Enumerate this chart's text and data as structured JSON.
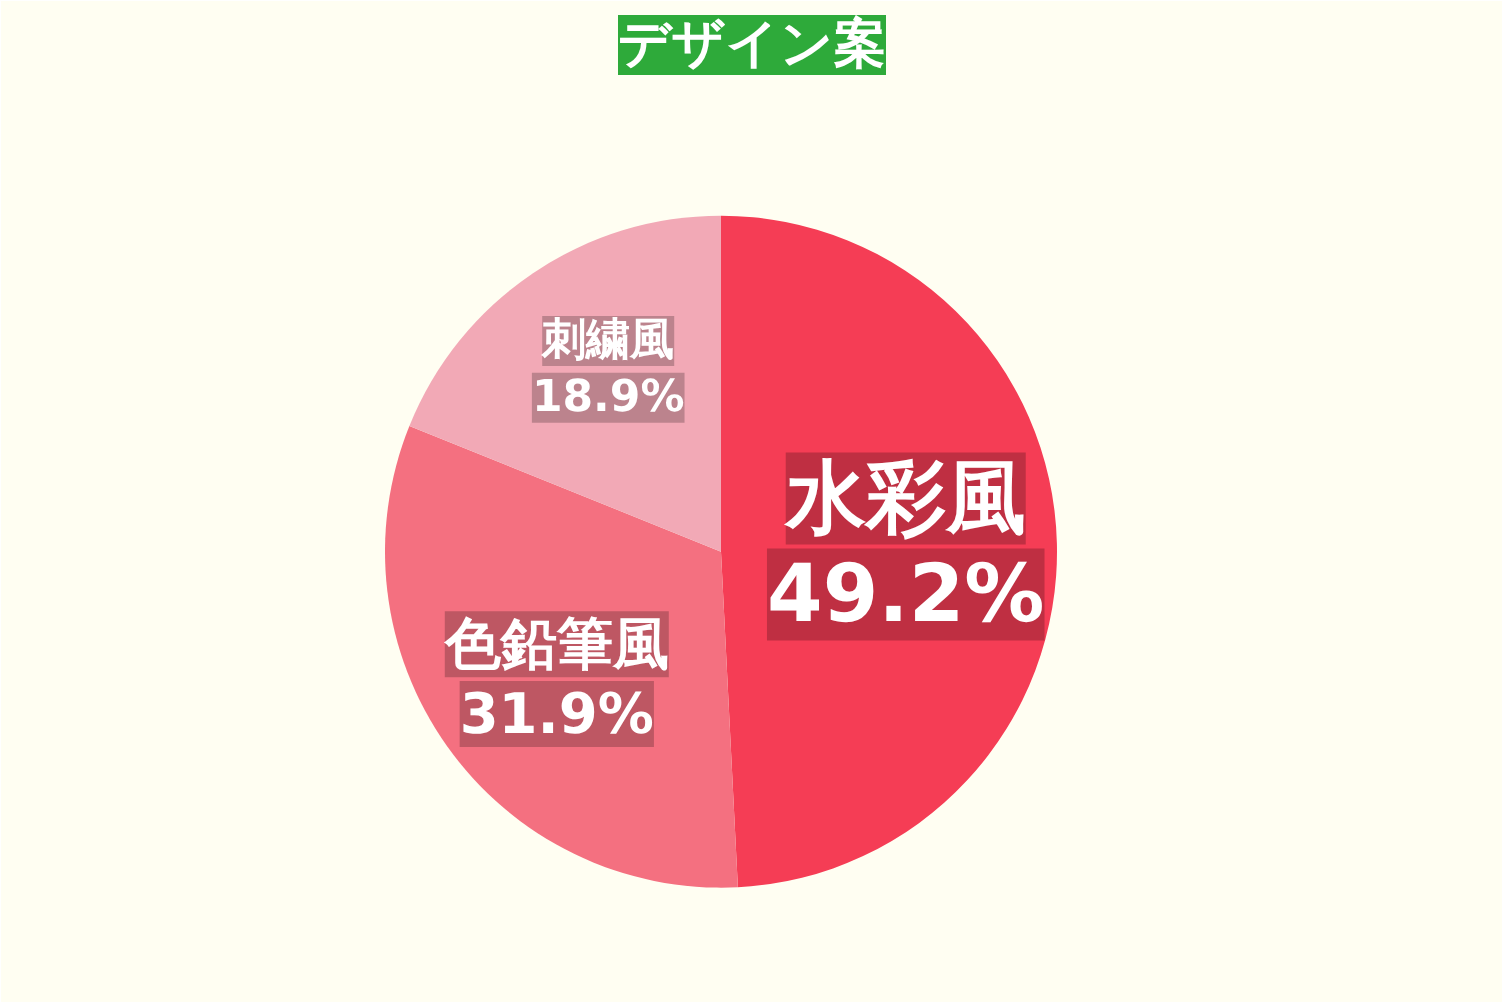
{
  "chart_data": {
    "type": "pie",
    "title": "デザイン案",
    "categories": [
      "水彩風",
      "色鉛筆風",
      "刺繍風"
    ],
    "values": [
      49.2,
      31.9,
      18.9
    ],
    "colors": [
      "#f53d55",
      "#f47080",
      "#f2a9b6"
    ],
    "value_labels": [
      "49.2%",
      "31.9%",
      "18.9%"
    ]
  }
}
